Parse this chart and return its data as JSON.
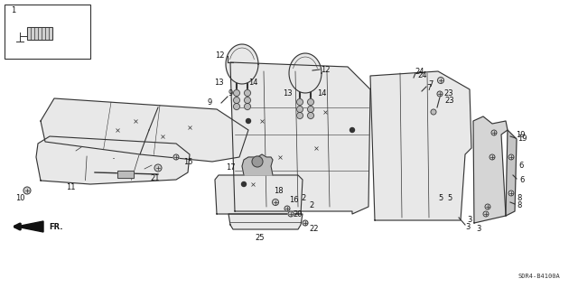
{
  "background_color": "#ffffff",
  "diagram_code": "SDR4-B4100A",
  "fig_width": 6.4,
  "fig_height": 3.19,
  "dpi": 100,
  "line_color": "#333333",
  "fill_color": "#e8e8e8",
  "label_fontsize": 6.0,
  "code_fontsize": 5.5
}
